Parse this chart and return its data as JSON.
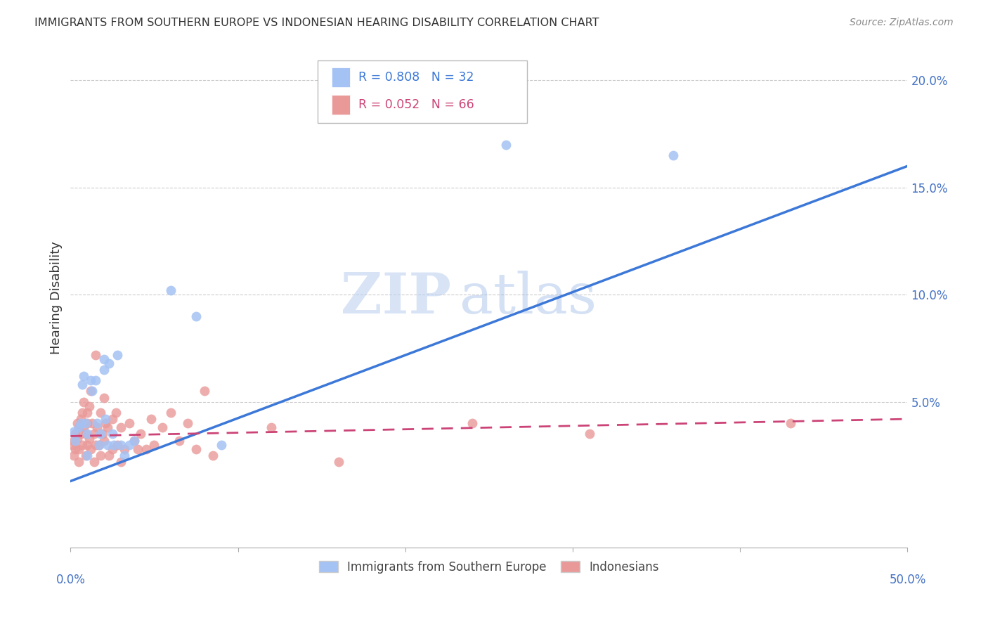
{
  "title": "IMMIGRANTS FROM SOUTHERN EUROPE VS INDONESIAN HEARING DISABILITY CORRELATION CHART",
  "source": "Source: ZipAtlas.com",
  "ylabel": "Hearing Disability",
  "xlim": [
    0.0,
    0.5
  ],
  "ylim": [
    -0.018,
    0.215
  ],
  "ytick_values": [
    0.0,
    0.05,
    0.1,
    0.15,
    0.2
  ],
  "blue_R": 0.808,
  "blue_N": 32,
  "pink_R": 0.052,
  "pink_N": 66,
  "blue_color": "#a4c2f4",
  "pink_color": "#ea9999",
  "blue_line_color": "#3c78d8",
  "pink_line_color": "#cc4477",
  "legend_text_blue_color": "#3c78d8",
  "legend_text_pink_color": "#cc4477",
  "tick_color": "#4472c4",
  "blue_scatter_x": [
    0.002,
    0.003,
    0.005,
    0.006,
    0.007,
    0.008,
    0.009,
    0.01,
    0.01,
    0.012,
    0.013,
    0.015,
    0.016,
    0.017,
    0.018,
    0.02,
    0.02,
    0.021,
    0.022,
    0.023,
    0.025,
    0.026,
    0.028,
    0.03,
    0.032,
    0.035,
    0.038,
    0.06,
    0.075,
    0.09,
    0.26,
    0.36
  ],
  "blue_scatter_y": [
    0.036,
    0.032,
    0.038,
    0.04,
    0.058,
    0.062,
    0.04,
    0.035,
    0.025,
    0.06,
    0.055,
    0.06,
    0.04,
    0.03,
    0.035,
    0.065,
    0.07,
    0.042,
    0.03,
    0.068,
    0.035,
    0.03,
    0.072,
    0.03,
    0.025,
    0.03,
    0.032,
    0.102,
    0.09,
    0.03,
    0.17,
    0.165
  ],
  "pink_scatter_x": [
    0.001,
    0.002,
    0.002,
    0.003,
    0.003,
    0.004,
    0.004,
    0.005,
    0.005,
    0.005,
    0.006,
    0.006,
    0.007,
    0.007,
    0.008,
    0.008,
    0.009,
    0.009,
    0.01,
    0.01,
    0.01,
    0.011,
    0.011,
    0.012,
    0.012,
    0.013,
    0.014,
    0.014,
    0.015,
    0.015,
    0.016,
    0.017,
    0.018,
    0.018,
    0.019,
    0.02,
    0.02,
    0.021,
    0.022,
    0.023,
    0.025,
    0.025,
    0.027,
    0.028,
    0.03,
    0.03,
    0.032,
    0.035,
    0.038,
    0.04,
    0.042,
    0.045,
    0.048,
    0.05,
    0.055,
    0.06,
    0.065,
    0.07,
    0.075,
    0.08,
    0.085,
    0.12,
    0.16,
    0.24,
    0.31,
    0.43
  ],
  "pink_scatter_y": [
    0.03,
    0.032,
    0.025,
    0.035,
    0.028,
    0.04,
    0.033,
    0.038,
    0.028,
    0.022,
    0.042,
    0.035,
    0.045,
    0.03,
    0.05,
    0.038,
    0.035,
    0.025,
    0.04,
    0.045,
    0.03,
    0.048,
    0.033,
    0.055,
    0.028,
    0.04,
    0.035,
    0.022,
    0.072,
    0.03,
    0.038,
    0.03,
    0.045,
    0.025,
    0.035,
    0.052,
    0.032,
    0.04,
    0.038,
    0.025,
    0.042,
    0.028,
    0.045,
    0.03,
    0.038,
    0.022,
    0.028,
    0.04,
    0.032,
    0.028,
    0.035,
    0.028,
    0.042,
    0.03,
    0.038,
    0.045,
    0.032,
    0.04,
    0.028,
    0.055,
    0.025,
    0.038,
    0.022,
    0.04,
    0.035,
    0.04
  ],
  "blue_trendline_x": [
    0.0,
    0.5
  ],
  "blue_trendline_y": [
    0.013,
    0.16
  ],
  "pink_trendline_x": [
    0.0,
    0.5
  ],
  "pink_trendline_y": [
    0.034,
    0.042
  ],
  "legend_label_blue": "Immigrants from Southern Europe",
  "legend_label_pink": "Indonesians",
  "watermark_part1": "ZIP",
  "watermark_part2": "atlas",
  "background_color": "#ffffff",
  "grid_color": "#cccccc",
  "title_color": "#333333",
  "axis_label_color": "#333333"
}
